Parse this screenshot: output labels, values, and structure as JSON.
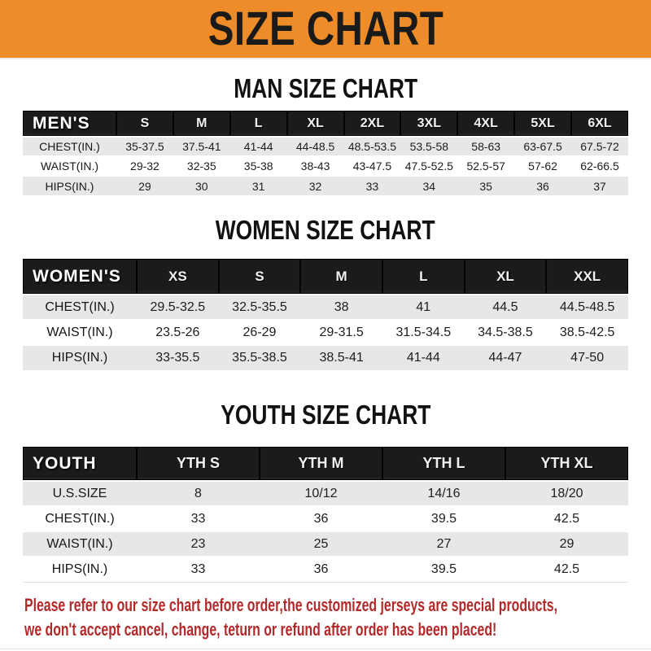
{
  "banner": {
    "title": "SIZE CHART"
  },
  "chart_data": [
    {
      "type": "table",
      "id": "mens",
      "title": "MAN SIZE CHART",
      "header_label": "MEN'S",
      "columns": [
        "S",
        "M",
        "L",
        "XL",
        "2XL",
        "3XL",
        "4XL",
        "5XL",
        "6XL"
      ],
      "rows": [
        {
          "label": "CHEST(IN.)",
          "values": [
            "35-37.5",
            "37.5-41",
            "41-44",
            "44-48.5",
            "48.5-53.5",
            "53.5-58",
            "58-63",
            "63-67.5",
            "67.5-72"
          ]
        },
        {
          "label": "WAIST(IN.)",
          "values": [
            "29-32",
            "32-35",
            "35-38",
            "38-43",
            "43-47.5",
            "47.5-52.5",
            "52.5-57",
            "57-62",
            "62-66.5"
          ]
        },
        {
          "label": "HIPS(IN.)",
          "values": [
            "29",
            "30",
            "31",
            "32",
            "33",
            "34",
            "35",
            "36",
            "37"
          ]
        }
      ]
    },
    {
      "type": "table",
      "id": "womens",
      "title": "WOMEN SIZE CHART",
      "header_label": "WOMEN'S",
      "columns": [
        "XS",
        "S",
        "M",
        "L",
        "XL",
        "XXL"
      ],
      "rows": [
        {
          "label": "CHEST(IN.)",
          "values": [
            "29.5-32.5",
            "32.5-35.5",
            "38",
            "41",
            "44.5",
            "44.5-48.5"
          ]
        },
        {
          "label": "WAIST(IN.)",
          "values": [
            "23.5-26",
            "26-29",
            "29-31.5",
            "31.5-34.5",
            "34.5-38.5",
            "38.5-42.5"
          ]
        },
        {
          "label": "HIPS(IN.)",
          "values": [
            "33-35.5",
            "35.5-38.5",
            "38.5-41",
            "41-44",
            "44-47",
            "47-50"
          ]
        }
      ]
    },
    {
      "type": "table",
      "id": "youth",
      "title": "YOUTH SIZE CHART",
      "header_label": "YOUTH",
      "columns": [
        "YTH S",
        "YTH M",
        "YTH L",
        "YTH XL"
      ],
      "rows": [
        {
          "label": "U.S.SIZE",
          "values": [
            "8",
            "10/12",
            "14/16",
            "18/20"
          ]
        },
        {
          "label": "CHEST(IN.)",
          "values": [
            "33",
            "36",
            "39.5",
            "42.5"
          ]
        },
        {
          "label": "WAIST(IN.)",
          "values": [
            "23",
            "25",
            "27",
            "29"
          ]
        },
        {
          "label": "HIPS(IN.)",
          "values": [
            "33",
            "36",
            "39.5",
            "42.5"
          ]
        }
      ]
    }
  ],
  "footer": {
    "line1": "Please refer to our size chart before order,the customized jerseys are special products,",
    "line2": "we don't accept cancel, change, teturn or refund after order has been placed!"
  },
  "colors": {
    "banner_bg": "#ED8C28",
    "banner_text": "#1A1A1A",
    "table_header_bg": "#1B1B1B",
    "table_header_text": "#FFFFFF",
    "row_alt_bg": "#E7E7E7",
    "row_bg": "#FFFFFF",
    "body_text": "#1D1D1D",
    "footer_text": "#B2292A"
  }
}
